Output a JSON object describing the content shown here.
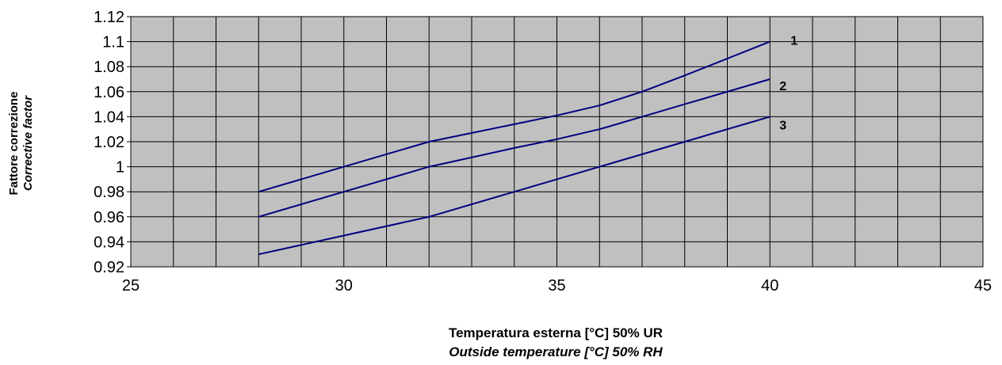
{
  "chart_data": {
    "type": "line",
    "title": "",
    "xlabel": "Temperatura esterna [°C] 50% UR",
    "xlabel_en": "Outside temperature [°C] 50% RH",
    "ylabel": "Fattore correzione",
    "ylabel_en": "Corrective factor",
    "xlim": [
      25,
      45
    ],
    "ylim": [
      0.92,
      1.12
    ],
    "x_ticks": [
      25,
      30,
      35,
      40,
      45
    ],
    "x_tick_labels": [
      "25",
      "30",
      "35",
      "40",
      "45"
    ],
    "y_ticks": [
      0.92,
      0.94,
      0.96,
      0.98,
      1.0,
      1.02,
      1.04,
      1.06,
      1.08,
      1.1,
      1.12
    ],
    "y_tick_labels": [
      "0.92",
      "0.94",
      "0.96",
      "0.98",
      "1",
      "1.02",
      "1.04",
      "1.06",
      "1.08",
      "1.1",
      "1.12"
    ],
    "grid": true,
    "x_grid_step": 1,
    "plot_background": "#c0c0c0",
    "line_color": "#000080",
    "grid_color": "#000000",
    "series": [
      {
        "label": "1",
        "x": [
          28,
          30,
          32,
          34,
          35,
          36,
          37,
          38,
          40
        ],
        "y": [
          0.98,
          1.0,
          1.02,
          1.034,
          1.041,
          1.049,
          1.06,
          1.073,
          1.1
        ]
      },
      {
        "label": "2",
        "x": [
          28,
          30,
          32,
          34,
          35,
          36,
          37,
          38,
          40
        ],
        "y": [
          0.96,
          0.98,
          1.0,
          1.015,
          1.022,
          1.03,
          1.04,
          1.05,
          1.07
        ]
      },
      {
        "label": "3",
        "x": [
          28,
          30,
          32,
          34,
          35,
          36,
          38,
          40
        ],
        "y": [
          0.93,
          0.945,
          0.96,
          0.98,
          0.99,
          1.0,
          1.02,
          1.04
        ]
      }
    ]
  }
}
